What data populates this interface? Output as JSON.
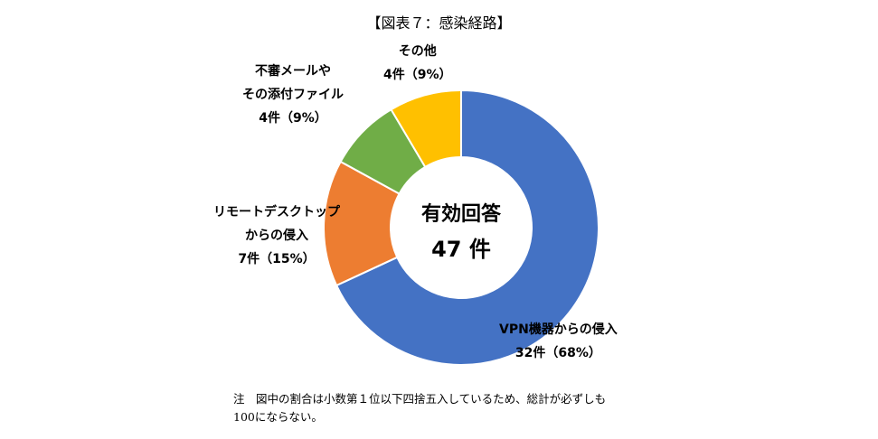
{
  "chart_data": {
    "type": "pie",
    "title": "【図表７：感染経路】",
    "center_label": {
      "line1": "有効回答",
      "line2": "47 件"
    },
    "categories": [
      "VPN機器からの侵入",
      "リモートデスクトップからの侵入",
      "不審メールやその添付ファイル",
      "その他"
    ],
    "values": [
      32,
      7,
      4,
      4
    ],
    "percent": [
      68,
      15,
      9,
      9
    ],
    "colors": [
      "#4472C4",
      "#ED7D31",
      "#70AD47",
      "#FFC000"
    ],
    "labels": [
      {
        "lines": [
          "VPN機器からの侵入",
          "32件（68%）"
        ]
      },
      {
        "lines": [
          "リモートデスクトップ",
          "からの侵入",
          "7件（15%）"
        ]
      },
      {
        "lines": [
          "不審メールや",
          "その添付ファイル",
          "4件（9%）"
        ]
      },
      {
        "lines": [
          "その他",
          "4件（9%）"
        ]
      }
    ]
  },
  "note": [
    "注　図中の割合は小数第１位以下四捨五入しているため、総計が必ずしも",
    "100にならない。"
  ]
}
